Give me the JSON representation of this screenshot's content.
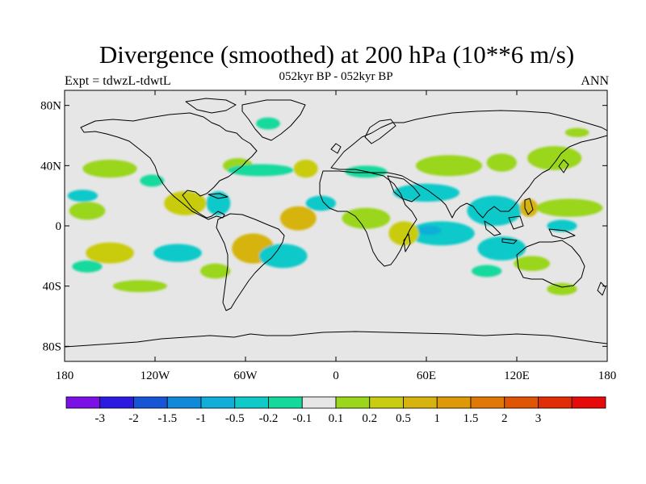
{
  "header": {
    "title": "Divergence (smoothed) at 200 hPa (10**6 m/s)",
    "subtitle": "052kyr BP - 052kyr BP",
    "left_label": "Expt = tdwzL-tdwtL",
    "right_label": "ANN"
  },
  "map": {
    "projection": "cylindrical-equidistant",
    "lon_range": [
      -180,
      180
    ],
    "lat_range": [
      -90,
      90
    ],
    "background_color": "#e6e6e6",
    "coastline_color": "#000000",
    "lat_ticks": [
      {
        "value": 80,
        "label": "80N"
      },
      {
        "value": 40,
        "label": "40N"
      },
      {
        "value": 0,
        "label": "0"
      },
      {
        "value": -40,
        "label": "40S"
      },
      {
        "value": -80,
        "label": "80S"
      }
    ],
    "lon_ticks": [
      {
        "value": -180,
        "label": "180"
      },
      {
        "value": -120,
        "label": "120W"
      },
      {
        "value": -60,
        "label": "60W"
      },
      {
        "value": 0,
        "label": "0"
      },
      {
        "value": 60,
        "label": "60E"
      },
      {
        "value": 120,
        "label": "120E"
      },
      {
        "value": 180,
        "label": "180"
      }
    ]
  },
  "colorbar": {
    "colors": [
      "#7b11e6",
      "#2d1ae0",
      "#1656d6",
      "#1089d8",
      "#10aed8",
      "#10c9c9",
      "#14d99d",
      "#e6e6e6",
      "#9ad61a",
      "#c9cc10",
      "#d6b40d",
      "#dd9a06",
      "#e07807",
      "#e05505",
      "#e02d05",
      "#e60a0a"
    ],
    "labels": [
      "-3",
      "-2",
      "-1.5",
      "-1",
      "-0.5",
      "-0.2",
      "-0.1",
      "0.1",
      "0.2",
      "0.5",
      "1",
      "1.5",
      "2",
      "3"
    ]
  },
  "field_regions": [
    {
      "name": "pacific-north-green",
      "color": "#9ad61a",
      "lon": -150,
      "lat": 38,
      "w": 18,
      "h": 6
    },
    {
      "name": "pacific-north-teal",
      "color": "#14d99d",
      "lon": -122,
      "lat": 30,
      "w": 8,
      "h": 4
    },
    {
      "name": "na-east-green",
      "color": "#9ad61a",
      "lon": -65,
      "lat": 40,
      "w": 10,
      "h": 5
    },
    {
      "name": "atlantic-north-teal",
      "color": "#14d99d",
      "lon": -50,
      "lat": 37,
      "w": 22,
      "h": 4
    },
    {
      "name": "atlantic-north-yellow",
      "color": "#c9cc10",
      "lon": -20,
      "lat": 38,
      "w": 8,
      "h": 6
    },
    {
      "name": "greenland-teal",
      "color": "#14d99d",
      "lon": -45,
      "lat": 68,
      "w": 8,
      "h": 4
    },
    {
      "name": "europe-teal",
      "color": "#14d99d",
      "lon": 20,
      "lat": 36,
      "w": 14,
      "h": 4
    },
    {
      "name": "asia-green",
      "color": "#9ad61a",
      "lon": 75,
      "lat": 40,
      "w": 22,
      "h": 7
    },
    {
      "name": "asia-green-2",
      "color": "#9ad61a",
      "lon": 110,
      "lat": 42,
      "w": 10,
      "h": 6
    },
    {
      "name": "japan-green",
      "color": "#9ad61a",
      "lon": 145,
      "lat": 45,
      "w": 18,
      "h": 8
    },
    {
      "name": "arctic-green",
      "color": "#9ad61a",
      "lon": 160,
      "lat": 62,
      "w": 8,
      "h": 3
    },
    {
      "name": "india-teal",
      "color": "#10c9c9",
      "lon": 60,
      "lat": 22,
      "w": 22,
      "h": 6
    },
    {
      "name": "seasia-teal",
      "color": "#10c9c9",
      "lon": 105,
      "lat": 10,
      "w": 18,
      "h": 10
    },
    {
      "name": "philippines-yellow",
      "color": "#d6b40d",
      "lon": 128,
      "lat": 12,
      "w": 6,
      "h": 6
    },
    {
      "name": "wpacific-green",
      "color": "#9ad61a",
      "lon": 155,
      "lat": 12,
      "w": 22,
      "h": 6
    },
    {
      "name": "epacific-green",
      "color": "#9ad61a",
      "lon": -165,
      "lat": 10,
      "w": 12,
      "h": 6
    },
    {
      "name": "epacific-teal",
      "color": "#10c9c9",
      "lon": -168,
      "lat": 20,
      "w": 10,
      "h": 4
    },
    {
      "name": "mexico-yellow",
      "color": "#c9cc10",
      "lon": -100,
      "lat": 15,
      "w": 14,
      "h": 8
    },
    {
      "name": "caribbean-teal",
      "color": "#10c9c9",
      "lon": -78,
      "lat": 15,
      "w": 8,
      "h": 8
    },
    {
      "name": "atlantic-trop-yellow",
      "color": "#d6b40d",
      "lon": -25,
      "lat": 5,
      "w": 12,
      "h": 8
    },
    {
      "name": "atlantic-trop-teal",
      "color": "#10c9c9",
      "lon": -10,
      "lat": 15,
      "w": 10,
      "h": 5
    },
    {
      "name": "africa-green",
      "color": "#9ad61a",
      "lon": 20,
      "lat": 5,
      "w": 16,
      "h": 7
    },
    {
      "name": "indian-ocean-teal",
      "color": "#10c9c9",
      "lon": 70,
      "lat": -5,
      "w": 22,
      "h": 8
    },
    {
      "name": "indian-ocean-blue",
      "color": "#10aed8",
      "lon": 62,
      "lat": -3,
      "w": 8,
      "h": 3
    },
    {
      "name": "indian-ocean-yellow",
      "color": "#c9cc10",
      "lon": 45,
      "lat": -5,
      "w": 10,
      "h": 8
    },
    {
      "name": "maritime-teal",
      "color": "#10c9c9",
      "lon": 110,
      "lat": -15,
      "w": 16,
      "h": 8
    },
    {
      "name": "australia-green",
      "color": "#9ad61a",
      "lon": 130,
      "lat": -25,
      "w": 12,
      "h": 5
    },
    {
      "name": "south-pacific-yellow",
      "color": "#c9cc10",
      "lon": -150,
      "lat": -18,
      "w": 16,
      "h": 7
    },
    {
      "name": "south-pacific-teal",
      "color": "#10c9c9",
      "lon": -105,
      "lat": -18,
      "w": 16,
      "h": 6
    },
    {
      "name": "south-america-yellow",
      "color": "#d6b40d",
      "lon": -55,
      "lat": -15,
      "w": 14,
      "h": 10
    },
    {
      "name": "south-america-teal",
      "color": "#10c9c9",
      "lon": -35,
      "lat": -20,
      "w": 16,
      "h": 8
    },
    {
      "name": "south-atlantic-green",
      "color": "#9ad61a",
      "lon": -80,
      "lat": -30,
      "w": 10,
      "h": 5
    },
    {
      "name": "southern-ocean-green",
      "color": "#9ad61a",
      "lon": -130,
      "lat": -40,
      "w": 18,
      "h": 4
    },
    {
      "name": "southern-ocean-teal",
      "color": "#14d99d",
      "lon": 100,
      "lat": -30,
      "w": 10,
      "h": 4
    },
    {
      "name": "southern-ocean-teal-2",
      "color": "#14d99d",
      "lon": -165,
      "lat": -27,
      "w": 10,
      "h": 4
    },
    {
      "name": "s-indian-green",
      "color": "#9ad61a",
      "lon": 150,
      "lat": -42,
      "w": 10,
      "h": 4
    },
    {
      "name": "central-pacific-teal",
      "color": "#10c9c9",
      "lon": 150,
      "lat": 0,
      "w": 10,
      "h": 4
    }
  ]
}
